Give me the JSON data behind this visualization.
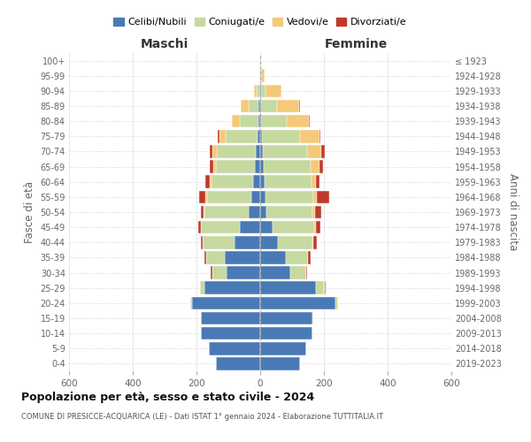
{
  "age_groups": [
    "0-4",
    "5-9",
    "10-14",
    "15-19",
    "20-24",
    "25-29",
    "30-34",
    "35-39",
    "40-44",
    "45-49",
    "50-54",
    "55-59",
    "60-64",
    "65-69",
    "70-74",
    "75-79",
    "80-84",
    "85-89",
    "90-94",
    "95-99",
    "100+"
  ],
  "birth_years": [
    "2019-2023",
    "2014-2018",
    "2009-2013",
    "2004-2008",
    "1999-2003",
    "1994-1998",
    "1989-1993",
    "1984-1988",
    "1979-1983",
    "1974-1978",
    "1969-1973",
    "1964-1968",
    "1959-1963",
    "1954-1958",
    "1949-1953",
    "1944-1948",
    "1939-1943",
    "1934-1938",
    "1929-1933",
    "1924-1928",
    "≤ 1923"
  ],
  "colors": {
    "celibi": "#4a7ab5",
    "coniugati": "#c5d9a0",
    "vedovi": "#f5c97a",
    "divorziati": "#c0392b"
  },
  "maschi": {
    "celibi": [
      140,
      160,
      185,
      185,
      215,
      175,
      105,
      110,
      80,
      65,
      35,
      28,
      22,
      18,
      15,
      8,
      5,
      5,
      2,
      1,
      1
    ],
    "coniugati": [
      0,
      0,
      0,
      2,
      5,
      15,
      45,
      60,
      100,
      120,
      140,
      140,
      130,
      120,
      120,
      100,
      60,
      30,
      8,
      1,
      0
    ],
    "vedovi": [
      0,
      0,
      0,
      0,
      0,
      0,
      0,
      0,
      0,
      2,
      2,
      3,
      5,
      10,
      15,
      20,
      25,
      25,
      10,
      2,
      0
    ],
    "divorziati": [
      0,
      0,
      0,
      0,
      0,
      0,
      5,
      5,
      5,
      8,
      10,
      20,
      15,
      10,
      8,
      5,
      0,
      0,
      0,
      0,
      0
    ]
  },
  "femmine": {
    "celibi": [
      125,
      145,
      165,
      165,
      235,
      175,
      95,
      80,
      55,
      40,
      20,
      18,
      15,
      12,
      8,
      5,
      3,
      2,
      2,
      1,
      0
    ],
    "coniugati": [
      0,
      0,
      0,
      3,
      10,
      25,
      50,
      70,
      110,
      130,
      145,
      150,
      145,
      145,
      140,
      120,
      80,
      50,
      15,
      2,
      0
    ],
    "vedovi": [
      0,
      0,
      0,
      0,
      0,
      3,
      0,
      0,
      2,
      5,
      8,
      10,
      15,
      30,
      45,
      60,
      70,
      70,
      50,
      10,
      2
    ],
    "divorziati": [
      0,
      0,
      0,
      0,
      0,
      3,
      3,
      8,
      10,
      15,
      20,
      40,
      12,
      10,
      10,
      5,
      3,
      2,
      0,
      0,
      0
    ]
  },
  "xlim": 600,
  "title": "Popolazione per età, sesso e stato civile - 2024",
  "subtitle": "COMUNE DI PRESICCE-ACQUARICA (LE) - Dati ISTAT 1° gennaio 2024 - Elaborazione TUTTITALIA.IT",
  "xlabel_left": "Maschi",
  "xlabel_right": "Femmine",
  "ylabel_left": "Fasce di età",
  "ylabel_right": "Anni di nascita",
  "legend_labels": [
    "Celibi/Nubili",
    "Coniugati/e",
    "Vedovi/e",
    "Divorziati/e"
  ],
  "bg_color": "#ffffff",
  "grid_color": "#cccccc",
  "bar_height": 0.85
}
